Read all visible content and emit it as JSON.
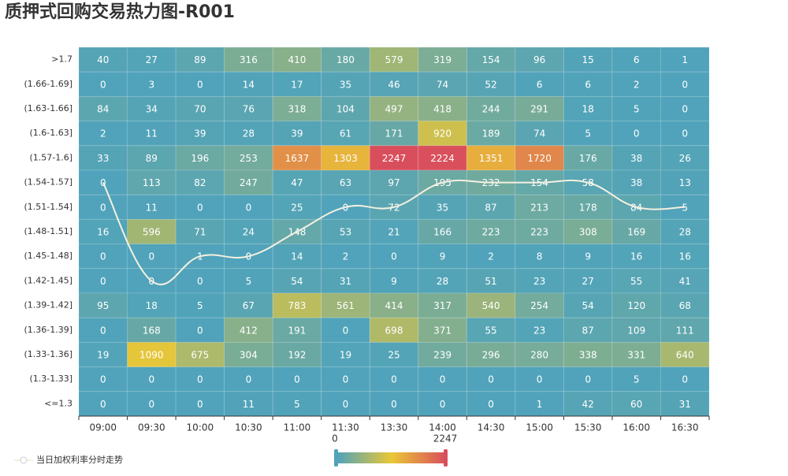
{
  "chart_data": {
    "type": "heatmap",
    "title": "质押式回购交易热力图-R001",
    "x": [
      "09:00",
      "09:30",
      "10:00",
      "10:30",
      "11:00",
      "11:30",
      "13:30",
      "14:00",
      "14:30",
      "15:00",
      "15:30",
      "16:00",
      "16:30"
    ],
    "categories": [
      ">1.7",
      "(1.66-1.69]",
      "(1.63-1.66]",
      "(1.6-1.63]",
      "(1.57-1.6]",
      "(1.54-1.57]",
      "(1.51-1.54]",
      "(1.48-1.51]",
      "(1.45-1.48]",
      "(1.42-1.45]",
      "(1.39-1.42]",
      "(1.36-1.39]",
      "(1.33-1.36]",
      "(1.3-1.33]",
      "<=1.3"
    ],
    "values": [
      [
        40,
        27,
        89,
        316,
        410,
        180,
        579,
        319,
        154,
        96,
        15,
        6,
        1
      ],
      [
        0,
        3,
        0,
        14,
        17,
        35,
        46,
        74,
        52,
        6,
        6,
        2,
        0
      ],
      [
        84,
        34,
        70,
        76,
        318,
        104,
        497,
        418,
        244,
        291,
        18,
        5,
        0
      ],
      [
        2,
        11,
        39,
        28,
        39,
        61,
        171,
        920,
        189,
        74,
        5,
        0,
        0
      ],
      [
        33,
        89,
        196,
        253,
        1637,
        1303,
        2247,
        2224,
        1351,
        1720,
        176,
        38,
        26
      ],
      [
        0,
        113,
        82,
        247,
        47,
        63,
        97,
        195,
        232,
        154,
        58,
        38,
        13
      ],
      [
        0,
        11,
        0,
        0,
        25,
        0,
        72,
        35,
        87,
        213,
        178,
        84,
        5
      ],
      [
        16,
        596,
        71,
        24,
        148,
        53,
        21,
        166,
        223,
        223,
        308,
        169,
        28
      ],
      [
        0,
        0,
        1,
        0,
        14,
        2,
        0,
        9,
        2,
        8,
        9,
        16,
        16
      ],
      [
        0,
        0,
        0,
        5,
        54,
        31,
        9,
        28,
        51,
        23,
        27,
        55,
        41
      ],
      [
        95,
        18,
        5,
        67,
        783,
        561,
        414,
        317,
        540,
        254,
        54,
        120,
        68
      ],
      [
        0,
        168,
        0,
        412,
        191,
        0,
        698,
        371,
        55,
        23,
        87,
        109,
        111
      ],
      [
        19,
        1090,
        675,
        304,
        192,
        19,
        25,
        239,
        296,
        280,
        338,
        331,
        640
      ],
      [
        0,
        0,
        0,
        0,
        0,
        0,
        0,
        0,
        0,
        0,
        0,
        5,
        0
      ],
      [
        0,
        0,
        0,
        11,
        5,
        0,
        0,
        0,
        0,
        1,
        42,
        60,
        31
      ]
    ],
    "line": {
      "name": "当日加权利率分时走势",
      "color": "#f5f0e0",
      "values": [
        "(1.54-1.57]",
        "(1.42-1.45]",
        "(1.45-1.48]",
        "(1.45-1.48]",
        "(1.48-1.51]",
        "(1.51-1.54]",
        "(1.51-1.54]",
        "(1.54-1.57]",
        "(1.54-1.57]",
        "(1.54-1.57]",
        "(1.54-1.57]",
        "(1.51-1.54]",
        "(1.51-1.54]"
      ]
    },
    "visual_map": {
      "min": 0,
      "max": 2247,
      "colors": [
        "#50a3ba",
        "#eac736",
        "#d94e5d"
      ]
    }
  }
}
